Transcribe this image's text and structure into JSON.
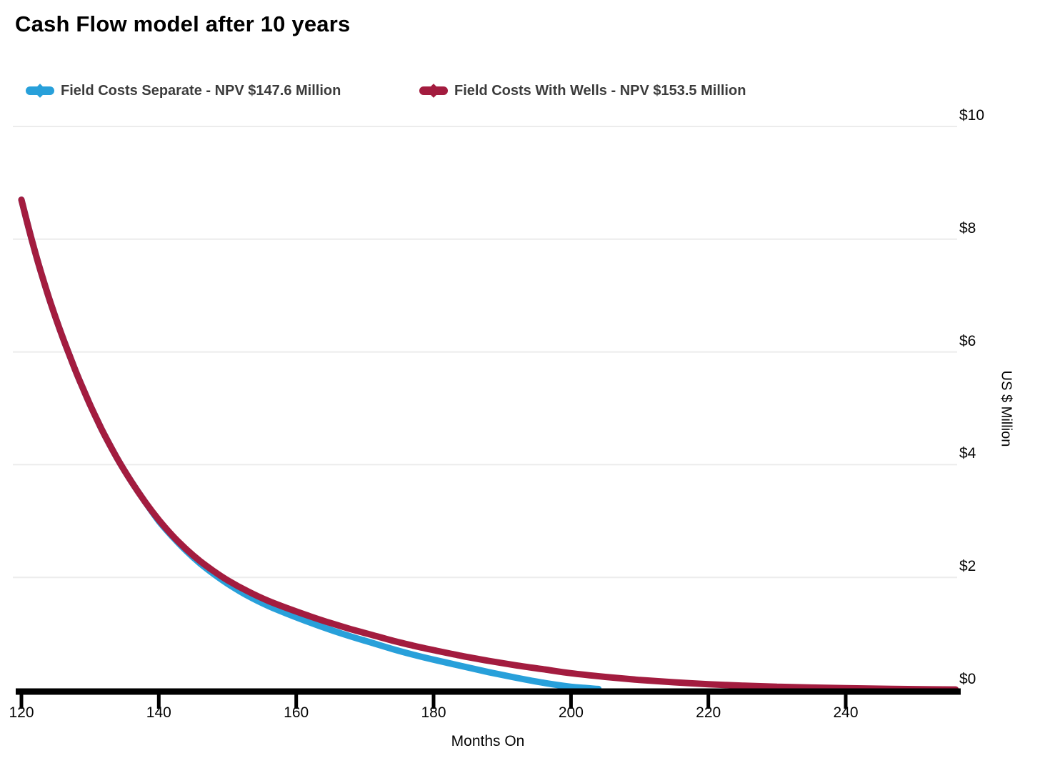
{
  "title": "Cash Flow model after 10 years",
  "colors": {
    "background": "#FFFFFF",
    "grid": "#ECECEC",
    "axis": "#000000",
    "title_text": "#000000",
    "legend_text": "#3C3C3C",
    "tick_text": "#050505",
    "series_separate": "#28A0DA",
    "series_with_wells": "#A31C3F"
  },
  "x_axis": {
    "label": "Months On",
    "ticks": [
      {
        "value": 120,
        "label": "120"
      },
      {
        "value": 140,
        "label": "140"
      },
      {
        "value": 160,
        "label": "160"
      },
      {
        "value": 180,
        "label": "180"
      },
      {
        "value": 200,
        "label": "200"
      },
      {
        "value": 220,
        "label": "220"
      },
      {
        "value": 240,
        "label": "240"
      }
    ]
  },
  "y_axis": {
    "label": "US $ Million",
    "ticks": [
      {
        "value": 0,
        "label": "$0"
      },
      {
        "value": 2,
        "label": "$2"
      },
      {
        "value": 4,
        "label": "$4"
      },
      {
        "value": 6,
        "label": "$6"
      },
      {
        "value": 8,
        "label": "$8"
      },
      {
        "value": 10,
        "label": "$10"
      }
    ]
  },
  "chart_data": {
    "type": "line",
    "title": "Cash Flow model after 10 years",
    "xlabel": "Months On",
    "ylabel": "US $ Million",
    "xlim": [
      118,
      257
    ],
    "ylim": [
      0,
      10
    ],
    "x_ticks": [
      120,
      140,
      160,
      180,
      200,
      220,
      240
    ],
    "y_ticks": [
      0,
      2,
      4,
      6,
      8,
      10
    ],
    "grid": "horizontal-only",
    "legend_position": "top",
    "series": [
      {
        "name": "Field Costs Separate - NPV $147.6 Million",
        "npv_million_usd": 147.6,
        "color": "#28A0DA",
        "points": [
          [
            120,
            8.7
          ],
          [
            121,
            8.22
          ],
          [
            122,
            7.77
          ],
          [
            123,
            7.35
          ],
          [
            124,
            6.96
          ],
          [
            125,
            6.6
          ],
          [
            126,
            6.26
          ],
          [
            127,
            5.94
          ],
          [
            128,
            5.63
          ],
          [
            129,
            5.34
          ],
          [
            130,
            5.06
          ],
          [
            131,
            4.8
          ],
          [
            132,
            4.55
          ],
          [
            134,
            4.1
          ],
          [
            136,
            3.7
          ],
          [
            138,
            3.34
          ],
          [
            140,
            3.0
          ],
          [
            142,
            2.72
          ],
          [
            144,
            2.47
          ],
          [
            146,
            2.25
          ],
          [
            148,
            2.06
          ],
          [
            150,
            1.89
          ],
          [
            153,
            1.67
          ],
          [
            156,
            1.49
          ],
          [
            159,
            1.34
          ],
          [
            162,
            1.2
          ],
          [
            165,
            1.07
          ],
          [
            168,
            0.95
          ],
          [
            171,
            0.84
          ],
          [
            174,
            0.73
          ],
          [
            177,
            0.63
          ],
          [
            180,
            0.54
          ],
          [
            184,
            0.43
          ],
          [
            188,
            0.32
          ],
          [
            192,
            0.22
          ],
          [
            196,
            0.13
          ],
          [
            200,
            0.06
          ],
          [
            202,
            0.04
          ],
          [
            204,
            0.02
          ]
        ]
      },
      {
        "name": "Field Costs With Wells - NPV $153.5 Million",
        "npv_million_usd": 153.5,
        "color": "#A31C3F",
        "points": [
          [
            120,
            8.7
          ],
          [
            121,
            8.22
          ],
          [
            122,
            7.77
          ],
          [
            123,
            7.35
          ],
          [
            124,
            6.96
          ],
          [
            125,
            6.6
          ],
          [
            126,
            6.26
          ],
          [
            127,
            5.94
          ],
          [
            128,
            5.63
          ],
          [
            129,
            5.34
          ],
          [
            130,
            5.06
          ],
          [
            131,
            4.8
          ],
          [
            132,
            4.55
          ],
          [
            134,
            4.1
          ],
          [
            136,
            3.7
          ],
          [
            138,
            3.34
          ],
          [
            140,
            3.02
          ],
          [
            142,
            2.74
          ],
          [
            144,
            2.5
          ],
          [
            146,
            2.29
          ],
          [
            148,
            2.11
          ],
          [
            150,
            1.95
          ],
          [
            153,
            1.75
          ],
          [
            156,
            1.58
          ],
          [
            159,
            1.44
          ],
          [
            162,
            1.31
          ],
          [
            165,
            1.19
          ],
          [
            168,
            1.08
          ],
          [
            171,
            0.98
          ],
          [
            174,
            0.88
          ],
          [
            177,
            0.79
          ],
          [
            180,
            0.71
          ],
          [
            184,
            0.61
          ],
          [
            188,
            0.52
          ],
          [
            192,
            0.44
          ],
          [
            196,
            0.37
          ],
          [
            200,
            0.3
          ],
          [
            205,
            0.235
          ],
          [
            210,
            0.18
          ],
          [
            215,
            0.14
          ],
          [
            220,
            0.105
          ],
          [
            225,
            0.08
          ],
          [
            230,
            0.06
          ],
          [
            235,
            0.045
          ],
          [
            240,
            0.034
          ],
          [
            245,
            0.025
          ],
          [
            250,
            0.018
          ],
          [
            256,
            0.012
          ]
        ]
      }
    ]
  }
}
